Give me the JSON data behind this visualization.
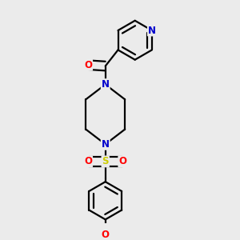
{
  "background_color": "#ebebeb",
  "bond_color": "#000000",
  "nitrogen_color": "#0000cc",
  "oxygen_color": "#ff0000",
  "sulfur_color": "#cccc00",
  "line_width": 1.6,
  "font_size": 8.5,
  "fig_size": [
    3.0,
    3.0
  ],
  "dpi": 100,
  "xlim": [
    0.1,
    0.9
  ],
  "ylim": [
    0.02,
    0.98
  ]
}
